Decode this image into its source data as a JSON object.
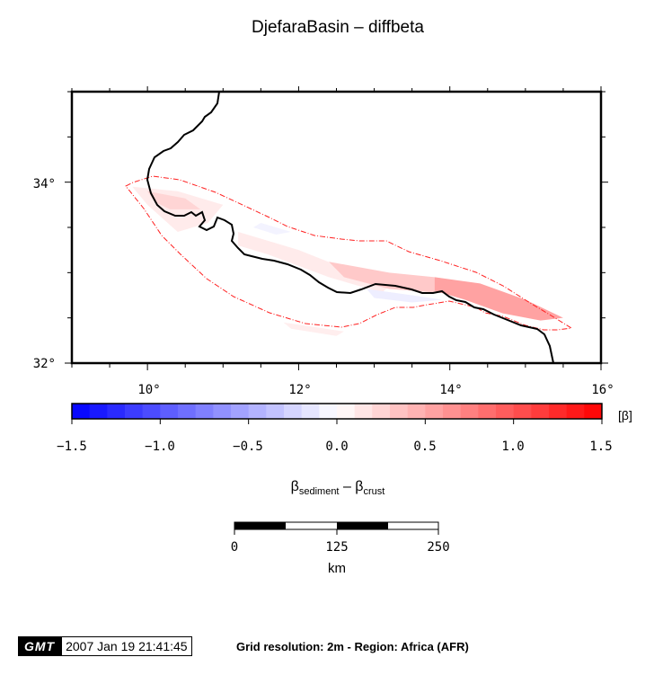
{
  "chart_data": {
    "type": "heatmap",
    "title": "DjefaraBasin – diffbeta",
    "xlim": [
      9,
      16
    ],
    "ylim": [
      32,
      35
    ],
    "x_ticks": [
      "10°",
      "12°",
      "14°",
      "16°"
    ],
    "y_ticks": [
      "32°",
      "34°"
    ],
    "colorbar": {
      "range": [
        -1.5,
        1.5
      ],
      "unit": "[β]",
      "tick_labels": [
        "−1.5",
        "−1.0",
        "−0.5",
        "0.0",
        "0.5",
        "1.0",
        "1.5"
      ],
      "low_color": "#0000ff",
      "mid_color": "#ffffff",
      "high_color": "#ff0000",
      "label_main": "β",
      "label_sub1": "sediment",
      "label_mid": " – β",
      "label_sub2": "crust"
    },
    "coastline": [
      [
        10.0,
        33.9
      ],
      [
        10.1,
        34.05
      ],
      [
        10.2,
        34.15
      ],
      [
        10.35,
        34.3
      ],
      [
        10.5,
        34.4
      ],
      [
        10.65,
        34.5
      ],
      [
        10.75,
        34.6
      ],
      [
        10.85,
        34.7
      ],
      [
        10.95,
        34.85
      ],
      [
        11.05,
        34.95
      ],
      [
        11.1,
        35.0
      ]
    ],
    "basin_region_values": [
      {
        "x": 10.1,
        "y": 33.85,
        "value": 0.2
      },
      {
        "x": 11.3,
        "y": 33.3,
        "value": 0.1
      },
      {
        "x": 12.2,
        "y": 33.1,
        "value": 0.2
      },
      {
        "x": 13.3,
        "y": 32.95,
        "value": 0.4
      },
      {
        "x": 14.3,
        "y": 32.75,
        "value": 0.6
      },
      {
        "x": 15.0,
        "y": 32.55,
        "value": 0.6
      },
      {
        "x": 13.2,
        "y": 32.72,
        "value": -0.1
      },
      {
        "x": 11.4,
        "y": 33.55,
        "value": -0.05
      }
    ],
    "scale_bar": {
      "ticks": [
        "0",
        "125",
        "250"
      ],
      "unit": "km"
    }
  },
  "footer": {
    "logo": "GMT",
    "timestamp": "2007 Jan 19 21:41:45",
    "note": "Grid resolution: 2m - Region: Africa (AFR)"
  }
}
